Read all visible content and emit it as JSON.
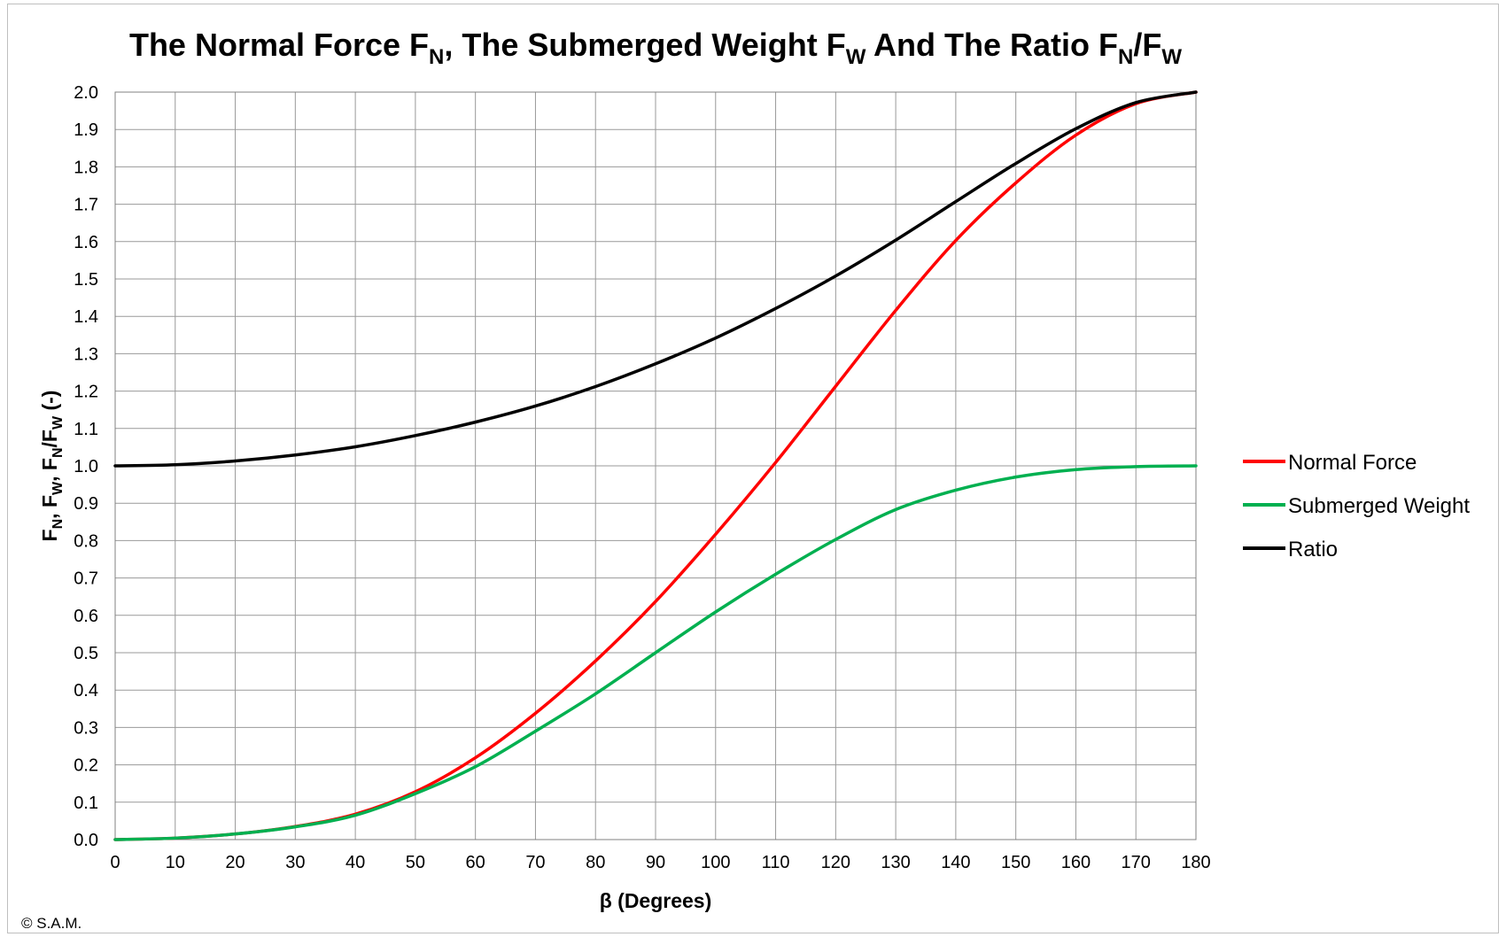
{
  "chart_data": {
    "type": "line",
    "title": {
      "parts": [
        "The Normal Force F",
        "N",
        ", The Submerged Weight F",
        "W",
        " And The Ratio F",
        "N",
        "/F",
        "W"
      ]
    },
    "xlabel": "β (Degrees)",
    "ylabel": {
      "parts": [
        "F",
        "N",
        ", F",
        "W",
        ", F",
        "N",
        "/F",
        "W",
        " (-)"
      ]
    },
    "xlim": [
      0,
      180
    ],
    "ylim": [
      0,
      2.0
    ],
    "x_ticks": [
      0,
      10,
      20,
      30,
      40,
      50,
      60,
      70,
      80,
      90,
      100,
      110,
      120,
      130,
      140,
      150,
      160,
      170,
      180
    ],
    "y_ticks": [
      "0.0",
      "0.1",
      "0.2",
      "0.3",
      "0.4",
      "0.5",
      "0.6",
      "0.7",
      "0.8",
      "0.9",
      "1.0",
      "1.1",
      "1.2",
      "1.3",
      "1.4",
      "1.5",
      "1.6",
      "1.7",
      "1.8",
      "1.9",
      "2.0"
    ],
    "grid": true,
    "legend_position": "right",
    "x": [
      0,
      10,
      20,
      30,
      40,
      50,
      60,
      70,
      80,
      90,
      100,
      110,
      120,
      130,
      140,
      150,
      160,
      170,
      180
    ],
    "series": [
      {
        "name": "Normal Force",
        "color": "#ff0000",
        "values": [
          0.0,
          0.004,
          0.015,
          0.035,
          0.068,
          0.128,
          0.219,
          0.338,
          0.478,
          0.637,
          0.817,
          1.009,
          1.213,
          1.416,
          1.603,
          1.757,
          1.885,
          1.969,
          2.0
        ]
      },
      {
        "name": "Submerged Weight",
        "color": "#00b050",
        "values": [
          0.0,
          0.004,
          0.015,
          0.034,
          0.065,
          0.123,
          0.195,
          0.29,
          0.39,
          0.5,
          0.609,
          0.71,
          0.803,
          0.883,
          0.935,
          0.97,
          0.99,
          0.998,
          1.0
        ]
      },
      {
        "name": "Ratio",
        "color": "#000000",
        "values": [
          1.0,
          1.003,
          1.013,
          1.029,
          1.051,
          1.081,
          1.117,
          1.16,
          1.212,
          1.273,
          1.342,
          1.421,
          1.508,
          1.604,
          1.707,
          1.809,
          1.902,
          1.972,
          2.0
        ]
      }
    ]
  },
  "copyright": "© S.A.M."
}
